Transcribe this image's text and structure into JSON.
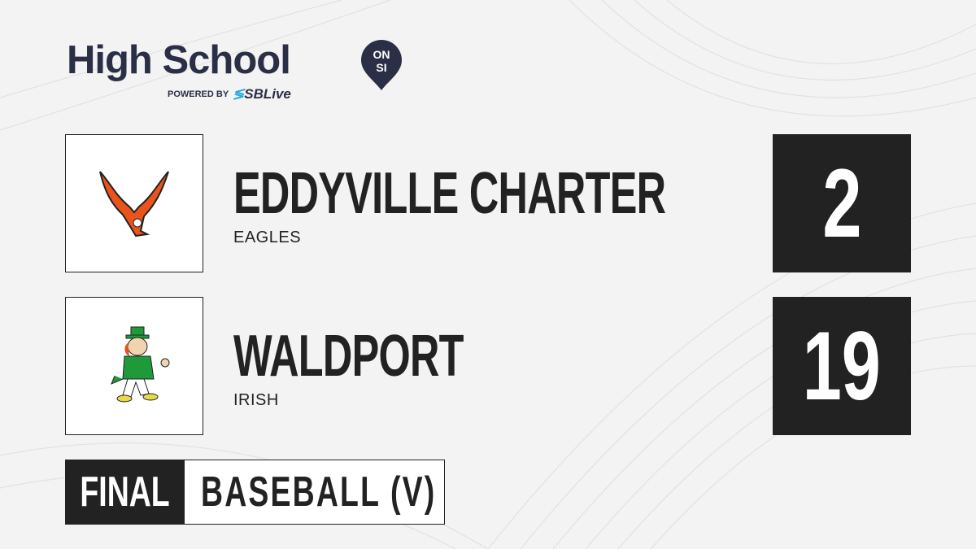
{
  "brand": {
    "title": "High School",
    "badge_top": "ON",
    "badge_bottom": "SI",
    "powered_by": "POWERED BY",
    "partner": "SBLive"
  },
  "teams": [
    {
      "name": "EDDYVILLE CHARTER",
      "mascot": "EAGLES",
      "score": "2",
      "logo_icon": "eagle-logo-icon"
    },
    {
      "name": "WALDPORT",
      "mascot": "IRISH",
      "score": "19",
      "logo_icon": "leprechaun-logo-icon"
    }
  ],
  "status": {
    "label": "FINAL",
    "sport": "BASEBALL (V)"
  },
  "colors": {
    "brand_navy": "#2b2f45",
    "dark": "#222222",
    "sblive_blue": "#29a8e0",
    "eagle_orange": "#e8541c",
    "irish_green": "#1f9a3a"
  }
}
